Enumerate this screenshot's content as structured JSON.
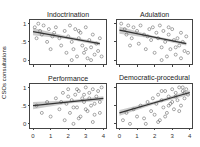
{
  "chart_data": {
    "type": "scatter",
    "y_label": "CSOs consultations",
    "xlim": [
      -0.15,
      4.15
    ],
    "ylim": [
      -0.1,
      1.1
    ],
    "xticks": [
      0,
      1,
      2,
      3,
      4
    ],
    "yticks": [
      0,
      {
        "value": 0.5,
        "label": ".5"
      },
      1
    ],
    "color": "#555555",
    "marker": "circle-open",
    "panels": [
      {
        "title": "Indoctrination",
        "x": [
          0.1,
          0.2,
          0.3,
          0.4,
          0.5,
          0.6,
          0.8,
          0.9,
          1.0,
          1.2,
          1.3,
          1.5,
          1.6,
          1.8,
          1.9,
          2.0,
          2.1,
          2.2,
          2.3,
          2.4,
          2.5,
          2.6,
          2.7,
          2.8,
          2.9,
          3.0,
          3.1,
          3.2,
          3.3,
          3.4,
          3.5,
          3.6,
          3.7,
          3.8,
          3.9,
          2.2,
          2.6,
          3.0,
          3.3,
          1.1
        ],
        "y": [
          0.9,
          0.6,
          1.0,
          0.8,
          0.7,
          0.95,
          0.5,
          0.85,
          0.3,
          0.75,
          0.9,
          0.6,
          0.4,
          0.8,
          0.2,
          0.65,
          0.95,
          0.5,
          0.3,
          0.85,
          0.1,
          0.6,
          0.75,
          0.4,
          0.2,
          0.9,
          0.05,
          0.55,
          0.35,
          0.7,
          0.15,
          0.45,
          0.25,
          0.6,
          0.1,
          0.0,
          0.8,
          0.3,
          0.0,
          0.65
        ],
        "fit_x": [
          0,
          1.9,
          3.8
        ],
        "fit_y": [
          0.78,
          0.62,
          0.45
        ],
        "fit_lower": [
          0.68,
          0.58,
          0.4
        ],
        "fit_upper": [
          0.88,
          0.66,
          0.5
        ]
      },
      {
        "title": "Adulation",
        "x": [
          0.1,
          0.3,
          0.4,
          0.5,
          0.7,
          0.8,
          1.0,
          1.1,
          1.2,
          1.4,
          1.5,
          1.7,
          1.8,
          1.9,
          2.0,
          2.1,
          2.2,
          2.3,
          2.4,
          2.5,
          2.6,
          2.7,
          2.8,
          2.9,
          3.0,
          3.1,
          3.2,
          3.3,
          3.4,
          3.5,
          3.6,
          3.7,
          3.8,
          3.9,
          2.4,
          2.8,
          3.2,
          3.5,
          0.6,
          1.6
        ],
        "y": [
          1.0,
          0.85,
          0.7,
          0.95,
          0.6,
          0.9,
          0.8,
          0.45,
          0.95,
          0.7,
          0.3,
          0.85,
          0.55,
          0.9,
          0.2,
          0.75,
          0.6,
          0.95,
          0.35,
          0.8,
          0.5,
          0.1,
          0.7,
          0.3,
          0.85,
          0.55,
          0.15,
          0.6,
          0.4,
          0.05,
          0.5,
          0.25,
          0.65,
          0.2,
          0.0,
          0.9,
          0.35,
          0.75,
          0.4,
          0.65
        ],
        "fit_x": [
          0,
          1.9,
          3.8
        ],
        "fit_y": [
          0.82,
          0.63,
          0.45
        ],
        "fit_lower": [
          0.72,
          0.59,
          0.4
        ],
        "fit_upper": [
          0.92,
          0.67,
          0.5
        ]
      },
      {
        "title": "Performance",
        "x": [
          0.2,
          0.5,
          0.8,
          1.0,
          1.3,
          1.5,
          1.7,
          1.8,
          1.9,
          2.0,
          2.1,
          2.2,
          2.3,
          2.4,
          2.5,
          2.6,
          2.7,
          2.8,
          2.9,
          3.0,
          3.1,
          3.2,
          3.3,
          3.4,
          3.5,
          3.6,
          3.7,
          3.8,
          3.9,
          2.3,
          2.6,
          2.9,
          3.2,
          3.5,
          3.8,
          2.0,
          2.5,
          3.0,
          1.6,
          3.4
        ],
        "y": [
          0.5,
          0.3,
          0.6,
          0.2,
          0.7,
          0.4,
          0.85,
          0.1,
          0.55,
          0.95,
          0.3,
          0.65,
          0.0,
          0.8,
          0.45,
          0.9,
          0.2,
          0.7,
          0.6,
          1.0,
          0.35,
          0.85,
          0.5,
          0.95,
          0.25,
          0.75,
          0.9,
          0.6,
          1.0,
          0.45,
          0.15,
          0.8,
          0.7,
          0.55,
          0.3,
          0.75,
          0.95,
          0.4,
          0.6,
          0.05
        ],
        "fit_x": [
          0,
          2,
          4
        ],
        "fit_y": [
          0.5,
          0.6,
          0.7
        ],
        "fit_lower": [
          0.4,
          0.56,
          0.64
        ],
        "fit_upper": [
          0.6,
          0.64,
          0.76
        ]
      },
      {
        "title": "Democratic-procedural",
        "x": [
          0.2,
          0.4,
          0.6,
          0.8,
          1.0,
          1.2,
          1.4,
          1.6,
          1.8,
          1.9,
          2.0,
          2.1,
          2.2,
          2.3,
          2.4,
          2.5,
          2.6,
          2.7,
          2.8,
          2.9,
          3.0,
          3.1,
          3.2,
          3.3,
          3.4,
          3.5,
          3.6,
          3.7,
          3.8,
          3.9,
          2.2,
          2.6,
          3.0,
          3.4,
          3.7,
          1.5,
          2.4,
          2.8,
          3.2,
          3.6
        ],
        "y": [
          0.1,
          0.3,
          0.0,
          0.4,
          0.2,
          0.5,
          0.15,
          0.6,
          0.35,
          0.7,
          0.25,
          0.55,
          0.8,
          0.1,
          0.65,
          0.45,
          0.9,
          0.3,
          0.75,
          0.55,
          0.95,
          0.4,
          0.85,
          0.65,
          1.0,
          0.5,
          0.9,
          0.7,
          0.95,
          0.8,
          0.05,
          0.2,
          0.6,
          0.35,
          0.85,
          0.0,
          0.9,
          0.5,
          0.75,
          1.0
        ],
        "fit_x": [
          0,
          2,
          4
        ],
        "fit_y": [
          0.3,
          0.58,
          0.86
        ],
        "fit_lower": [
          0.22,
          0.54,
          0.8
        ],
        "fit_upper": [
          0.38,
          0.62,
          0.92
        ]
      }
    ]
  }
}
